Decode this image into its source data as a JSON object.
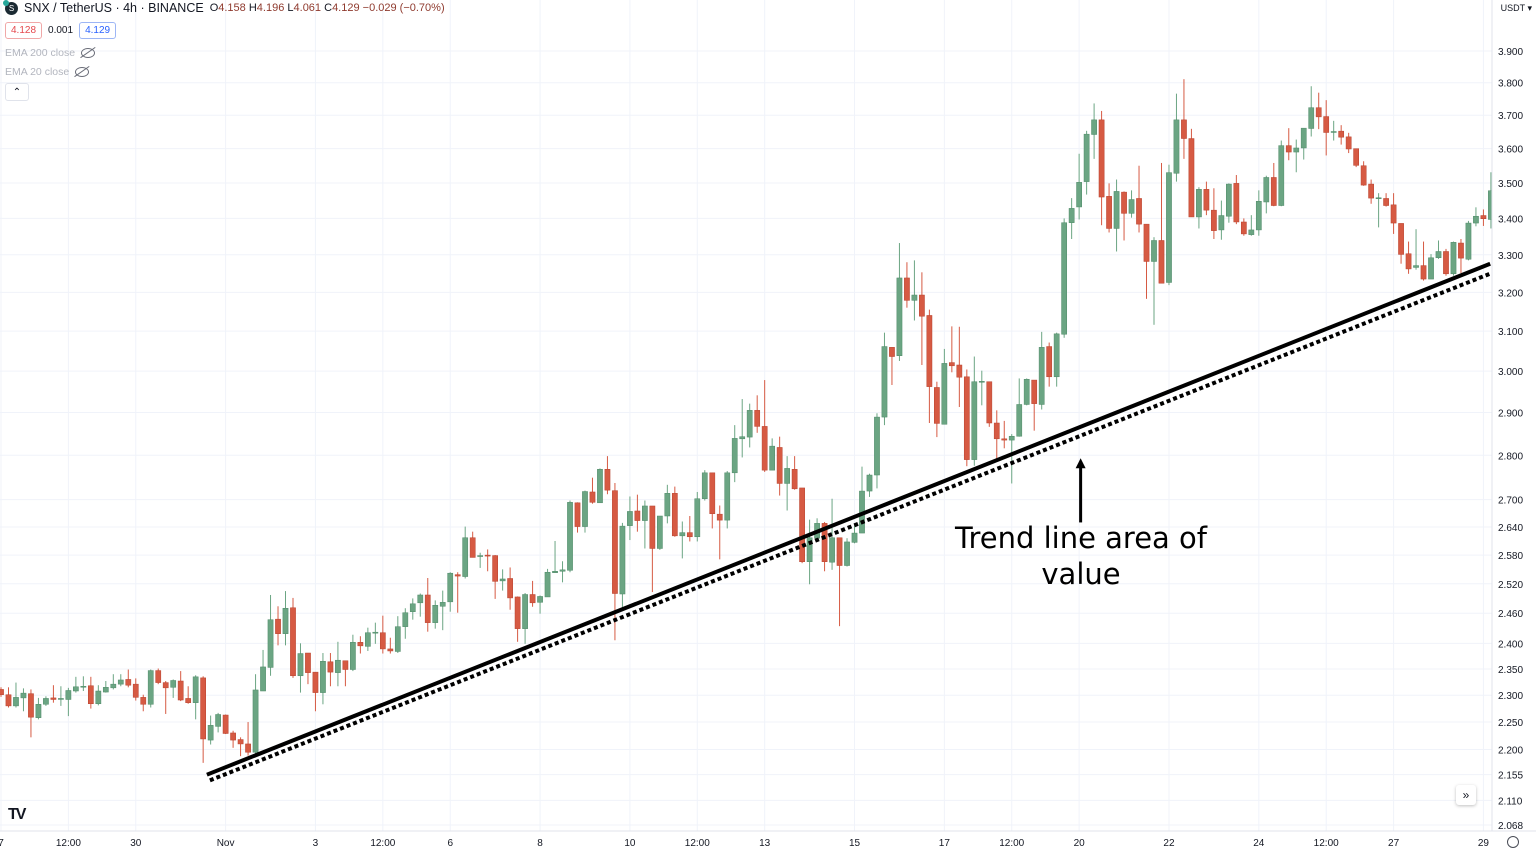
{
  "header": {
    "symbol_icon": "synthetix-coin-icon",
    "title": "SNX / TetherUS · 4h · BINANCE",
    "ohlc": {
      "o_label": "O",
      "o": "4.158",
      "h_label": "H",
      "h": "4.196",
      "l_label": "L",
      "l": "4.061",
      "c_label": "C",
      "c": "4.129",
      "change": "−0.029 (−0.70%)"
    },
    "bid": "4.128",
    "spread": "0.001",
    "ask": "4.129",
    "indicators": [
      {
        "label": "EMA 200 close",
        "icon": "eye-off-icon"
      },
      {
        "label": "EMA 20 close",
        "icon": "eye-off-icon"
      }
    ],
    "collapse_icon": "chevron-up-icon",
    "currency": "USDT ▾"
  },
  "footer": {
    "logo": "TV",
    "scroll_icon": "double-chevron-right-icon",
    "settings_icon": "gear-icon"
  },
  "colors": {
    "up": "#6ba583",
    "down": "#d65a43",
    "grid": "#f0f3fa",
    "trend": "#000000"
  },
  "chart_data": {
    "type": "candlestick",
    "y_scale": "log",
    "ylim": [
      2.06,
      3.92
    ],
    "grid": true,
    "y_ticks": [
      "3.900",
      "3.800",
      "3.700",
      "3.600",
      "3.500",
      "3.400",
      "3.300",
      "3.200",
      "3.100",
      "3.000",
      "2.900",
      "2.800",
      "2.700",
      "2.640",
      "2.580",
      "2.520",
      "2.460",
      "2.400",
      "2.350",
      "2.300",
      "2.250",
      "2.200",
      "2.155",
      "2.110",
      "2.068"
    ],
    "x_ticks": [
      {
        "label": "7",
        "bar": 0
      },
      {
        "label": "12:00",
        "bar": 9
      },
      {
        "label": "30",
        "bar": 18
      },
      {
        "label": "Nov",
        "bar": 30
      },
      {
        "label": "3",
        "bar": 42
      },
      {
        "label": "12:00",
        "bar": 51
      },
      {
        "label": "6",
        "bar": 60
      },
      {
        "label": "8",
        "bar": 72
      },
      {
        "label": "10",
        "bar": 84
      },
      {
        "label": "12:00",
        "bar": 93
      },
      {
        "label": "13",
        "bar": 102
      },
      {
        "label": "15",
        "bar": 114
      },
      {
        "label": "17",
        "bar": 126
      },
      {
        "label": "12:00",
        "bar": 135
      },
      {
        "label": "20",
        "bar": 144
      },
      {
        "label": "22",
        "bar": 156
      },
      {
        "label": "24",
        "bar": 168
      },
      {
        "label": "12:00",
        "bar": 177
      },
      {
        "label": "27",
        "bar": 186
      },
      {
        "label": "29",
        "bar": 198
      }
    ],
    "ohlc_fields": [
      "open",
      "high",
      "low",
      "close"
    ],
    "candles": [
      [
        2.311,
        2.315,
        2.297,
        2.301
      ],
      [
        2.301,
        2.315,
        2.277,
        2.28
      ],
      [
        2.28,
        2.324,
        2.277,
        2.296
      ],
      [
        2.295,
        2.313,
        2.27,
        2.304
      ],
      [
        2.303,
        2.311,
        2.222,
        2.259
      ],
      [
        2.258,
        2.295,
        2.255,
        2.283
      ],
      [
        2.283,
        2.298,
        2.28,
        2.294
      ],
      [
        2.295,
        2.319,
        2.286,
        2.292
      ],
      [
        2.294,
        2.317,
        2.28,
        2.294
      ],
      [
        2.292,
        2.314,
        2.261,
        2.309
      ],
      [
        2.308,
        2.335,
        2.305,
        2.316
      ],
      [
        2.317,
        2.336,
        2.308,
        2.317
      ],
      [
        2.318,
        2.335,
        2.275,
        2.284
      ],
      [
        2.284,
        2.319,
        2.281,
        2.308
      ],
      [
        2.306,
        2.327,
        2.305,
        2.315
      ],
      [
        2.314,
        2.34,
        2.311,
        2.321
      ],
      [
        2.321,
        2.34,
        2.317,
        2.329
      ],
      [
        2.33,
        2.349,
        2.315,
        2.319
      ],
      [
        2.321,
        2.332,
        2.29,
        2.296
      ],
      [
        2.296,
        2.301,
        2.27,
        2.283
      ],
      [
        2.283,
        2.349,
        2.277,
        2.347
      ],
      [
        2.347,
        2.351,
        2.321,
        2.324
      ],
      [
        2.324,
        2.327,
        2.265,
        2.314
      ],
      [
        2.315,
        2.33,
        2.295,
        2.328
      ],
      [
        2.327,
        2.346,
        2.289,
        2.291
      ],
      [
        2.294,
        2.317,
        2.284,
        2.286
      ],
      [
        2.286,
        2.338,
        2.255,
        2.335
      ],
      [
        2.333,
        2.336,
        2.176,
        2.219
      ],
      [
        2.217,
        2.262,
        2.209,
        2.244
      ],
      [
        2.242,
        2.267,
        2.231,
        2.264
      ],
      [
        2.263,
        2.264,
        2.228,
        2.229
      ],
      [
        2.23,
        2.234,
        2.203,
        2.217
      ],
      [
        2.218,
        2.222,
        2.188,
        2.21
      ],
      [
        2.21,
        2.25,
        2.189,
        2.195
      ],
      [
        2.195,
        2.34,
        2.192,
        2.31
      ],
      [
        2.308,
        2.387,
        2.308,
        2.354
      ],
      [
        2.353,
        2.497,
        2.337,
        2.447
      ],
      [
        2.448,
        2.474,
        2.396,
        2.419
      ],
      [
        2.419,
        2.505,
        2.396,
        2.47
      ],
      [
        2.471,
        2.491,
        2.333,
        2.337
      ],
      [
        2.337,
        2.4,
        2.305,
        2.38
      ],
      [
        2.381,
        2.381,
        2.321,
        2.343
      ],
      [
        2.344,
        2.344,
        2.27,
        2.305
      ],
      [
        2.305,
        2.381,
        2.283,
        2.365
      ],
      [
        2.364,
        2.381,
        2.317,
        2.344
      ],
      [
        2.343,
        2.403,
        2.317,
        2.367
      ],
      [
        2.366,
        2.366,
        2.317,
        2.349
      ],
      [
        2.349,
        2.417,
        2.346,
        2.402
      ],
      [
        2.402,
        2.414,
        2.38,
        2.395
      ],
      [
        2.394,
        2.431,
        2.385,
        2.421
      ],
      [
        2.421,
        2.441,
        2.399,
        2.422
      ],
      [
        2.421,
        2.455,
        2.38,
        2.389
      ],
      [
        2.389,
        2.411,
        2.38,
        2.385
      ],
      [
        2.384,
        2.454,
        2.381,
        2.433
      ],
      [
        2.433,
        2.47,
        2.409,
        2.461
      ],
      [
        2.463,
        2.49,
        2.447,
        2.479
      ],
      [
        2.481,
        2.5,
        2.453,
        2.497
      ],
      [
        2.497,
        2.532,
        2.423,
        2.441
      ],
      [
        2.441,
        2.486,
        2.429,
        2.476
      ],
      [
        2.474,
        2.506,
        2.426,
        2.482
      ],
      [
        2.483,
        2.544,
        2.463,
        2.542
      ],
      [
        2.539,
        2.544,
        2.461,
        2.536
      ],
      [
        2.535,
        2.641,
        2.531,
        2.617
      ],
      [
        2.617,
        2.63,
        2.575,
        2.575
      ],
      [
        2.579,
        2.585,
        2.553,
        2.579
      ],
      [
        2.58,
        2.592,
        2.546,
        2.578
      ],
      [
        2.579,
        2.58,
        2.489,
        2.525
      ],
      [
        2.526,
        2.55,
        2.506,
        2.53
      ],
      [
        2.531,
        2.554,
        2.467,
        2.491
      ],
      [
        2.493,
        2.494,
        2.403,
        2.429
      ],
      [
        2.429,
        2.501,
        2.399,
        2.498
      ],
      [
        2.498,
        2.526,
        2.473,
        2.481
      ],
      [
        2.482,
        2.496,
        2.459,
        2.494
      ],
      [
        2.493,
        2.551,
        2.493,
        2.544
      ],
      [
        2.543,
        2.61,
        2.543,
        2.546
      ],
      [
        2.546,
        2.567,
        2.523,
        2.549
      ],
      [
        2.548,
        2.698,
        2.544,
        2.694
      ],
      [
        2.693,
        2.694,
        2.628,
        2.641
      ],
      [
        2.641,
        2.72,
        2.628,
        2.718
      ],
      [
        2.717,
        2.749,
        2.691,
        2.694
      ],
      [
        2.693,
        2.77,
        2.693,
        2.768
      ],
      [
        2.768,
        2.798,
        2.712,
        2.721
      ],
      [
        2.72,
        2.737,
        2.406,
        2.5
      ],
      [
        2.499,
        2.649,
        2.466,
        2.642
      ],
      [
        2.643,
        2.707,
        2.612,
        2.674
      ],
      [
        2.675,
        2.711,
        2.63,
        2.654
      ],
      [
        2.654,
        2.698,
        2.594,
        2.686
      ],
      [
        2.686,
        2.686,
        2.503,
        2.594
      ],
      [
        2.594,
        2.664,
        2.591,
        2.664
      ],
      [
        2.664,
        2.733,
        2.648,
        2.714
      ],
      [
        2.714,
        2.729,
        2.619,
        2.621
      ],
      [
        2.621,
        2.652,
        2.573,
        2.628
      ],
      [
        2.628,
        2.664,
        2.609,
        2.619
      ],
      [
        2.619,
        2.717,
        2.609,
        2.702
      ],
      [
        2.702,
        2.766,
        2.698,
        2.76
      ],
      [
        2.76,
        2.76,
        2.637,
        2.669
      ],
      [
        2.668,
        2.687,
        2.571,
        2.655
      ],
      [
        2.655,
        2.764,
        2.637,
        2.76
      ],
      [
        2.76,
        2.87,
        2.739,
        2.839
      ],
      [
        2.838,
        2.932,
        2.795,
        2.843
      ],
      [
        2.842,
        2.921,
        2.818,
        2.905
      ],
      [
        2.905,
        2.941,
        2.852,
        2.867
      ],
      [
        2.867,
        2.978,
        2.762,
        2.766
      ],
      [
        2.766,
        2.839,
        2.766,
        2.821
      ],
      [
        2.818,
        2.843,
        2.709,
        2.736
      ],
      [
        2.736,
        2.798,
        2.676,
        2.77
      ],
      [
        2.768,
        2.798,
        2.722,
        2.724
      ],
      [
        2.726,
        2.726,
        2.563,
        2.566
      ],
      [
        2.566,
        2.656,
        2.519,
        2.617
      ],
      [
        2.616,
        2.659,
        2.614,
        2.648
      ],
      [
        2.648,
        2.651,
        2.546,
        2.566
      ],
      [
        2.565,
        2.702,
        2.549,
        2.617
      ],
      [
        2.617,
        2.617,
        2.434,
        2.558
      ],
      [
        2.558,
        2.616,
        2.556,
        2.608
      ],
      [
        2.607,
        2.648,
        2.605,
        2.627
      ],
      [
        2.627,
        2.774,
        2.627,
        2.719
      ],
      [
        2.719,
        2.758,
        2.706,
        2.755
      ],
      [
        2.755,
        2.898,
        2.725,
        2.889
      ],
      [
        2.889,
        3.096,
        2.87,
        3.061
      ],
      [
        3.059,
        3.059,
        2.966,
        3.036
      ],
      [
        3.038,
        3.332,
        3.025,
        3.238
      ],
      [
        3.238,
        3.28,
        3.16,
        3.179
      ],
      [
        3.179,
        3.285,
        3.127,
        3.193
      ],
      [
        3.193,
        3.253,
        3.015,
        3.138
      ],
      [
        3.14,
        3.155,
        2.875,
        2.962
      ],
      [
        2.96,
        2.974,
        2.842,
        2.874
      ],
      [
        2.872,
        3.055,
        2.872,
        3.019
      ],
      [
        3.021,
        3.112,
        2.997,
        3.013
      ],
      [
        3.015,
        3.111,
        2.913,
        2.985
      ],
      [
        2.986,
        3.004,
        2.775,
        2.79
      ],
      [
        2.79,
        3.036,
        2.776,
        2.974
      ],
      [
        2.974,
        3.001,
        2.917,
        2.975
      ],
      [
        2.974,
        2.974,
        2.866,
        2.875
      ],
      [
        2.875,
        2.905,
        2.789,
        2.838
      ],
      [
        2.838,
        2.88,
        2.816,
        2.835
      ],
      [
        2.835,
        2.849,
        2.736,
        2.844
      ],
      [
        2.844,
        2.982,
        2.843,
        2.919
      ],
      [
        2.919,
        2.982,
        2.917,
        2.98
      ],
      [
        2.978,
        2.978,
        2.857,
        2.921
      ],
      [
        2.919,
        3.098,
        2.907,
        3.059
      ],
      [
        3.061,
        3.071,
        2.962,
        2.986
      ],
      [
        2.986,
        3.096,
        2.962,
        3.093
      ],
      [
        3.092,
        3.4,
        3.083,
        3.388
      ],
      [
        3.388,
        3.457,
        3.343,
        3.428
      ],
      [
        3.432,
        3.585,
        3.397,
        3.502
      ],
      [
        3.504,
        3.653,
        3.467,
        3.643
      ],
      [
        3.642,
        3.736,
        3.57,
        3.686
      ],
      [
        3.686,
        3.713,
        3.381,
        3.46
      ],
      [
        3.462,
        3.499,
        3.361,
        3.372
      ],
      [
        3.372,
        3.51,
        3.309,
        3.476
      ],
      [
        3.474,
        3.476,
        3.339,
        3.414
      ],
      [
        3.414,
        3.479,
        3.402,
        3.453
      ],
      [
        3.456,
        3.55,
        3.361,
        3.384
      ],
      [
        3.384,
        3.384,
        3.183,
        3.282
      ],
      [
        3.282,
        3.348,
        3.116,
        3.339
      ],
      [
        3.339,
        3.558,
        3.224,
        3.224
      ],
      [
        3.226,
        3.553,
        3.219,
        3.53
      ],
      [
        3.528,
        3.766,
        3.504,
        3.686
      ],
      [
        3.686,
        3.811,
        3.57,
        3.63
      ],
      [
        3.63,
        3.659,
        3.404,
        3.404
      ],
      [
        3.404,
        3.488,
        3.372,
        3.482
      ],
      [
        3.482,
        3.504,
        3.409,
        3.423
      ],
      [
        3.423,
        3.485,
        3.343,
        3.366
      ],
      [
        3.368,
        3.45,
        3.341,
        3.408
      ],
      [
        3.406,
        3.499,
        3.388,
        3.497
      ],
      [
        3.499,
        3.523,
        3.384,
        3.39
      ],
      [
        3.39,
        3.4,
        3.352,
        3.357
      ],
      [
        3.355,
        3.409,
        3.352,
        3.368
      ],
      [
        3.368,
        3.479,
        3.352,
        3.448
      ],
      [
        3.446,
        3.521,
        3.414,
        3.516
      ],
      [
        3.516,
        3.558,
        3.434,
        3.436
      ],
      [
        3.436,
        3.624,
        3.434,
        3.609
      ],
      [
        3.609,
        3.661,
        3.566,
        3.59
      ],
      [
        3.59,
        3.627,
        3.531,
        3.602
      ],
      [
        3.602,
        3.661,
        3.568,
        3.661
      ],
      [
        3.66,
        3.789,
        3.636,
        3.723
      ],
      [
        3.723,
        3.769,
        3.658,
        3.695
      ],
      [
        3.696,
        3.746,
        3.58,
        3.648
      ],
      [
        3.65,
        3.683,
        3.624,
        3.651
      ],
      [
        3.652,
        3.67,
        3.612,
        3.634
      ],
      [
        3.635,
        3.647,
        3.587,
        3.599
      ],
      [
        3.6,
        3.6,
        3.546,
        3.551
      ],
      [
        3.55,
        3.563,
        3.492,
        3.494
      ],
      [
        3.497,
        3.51,
        3.441,
        3.457
      ],
      [
        3.457,
        3.471,
        3.375,
        3.458
      ],
      [
        3.456,
        3.471,
        3.433,
        3.436
      ],
      [
        3.438,
        3.471,
        3.357,
        3.387
      ],
      [
        3.386,
        3.386,
        3.276,
        3.301
      ],
      [
        3.303,
        3.336,
        3.249,
        3.262
      ],
      [
        3.266,
        3.37,
        3.26,
        3.271
      ],
      [
        3.271,
        3.336,
        3.231,
        3.235
      ],
      [
        3.235,
        3.302,
        3.235,
        3.292
      ],
      [
        3.292,
        3.339,
        3.289,
        3.309
      ],
      [
        3.309,
        3.316,
        3.244,
        3.249
      ],
      [
        3.249,
        3.336,
        3.244,
        3.334
      ],
      [
        3.332,
        3.343,
        3.251,
        3.291
      ],
      [
        3.288,
        3.393,
        3.285,
        3.387
      ],
      [
        3.387,
        3.431,
        3.378,
        3.406
      ],
      [
        3.408,
        3.425,
        3.379,
        3.399
      ],
      [
        3.397,
        3.531,
        3.372,
        3.478
      ]
    ],
    "trend_lines": [
      {
        "style": "solid",
        "from": {
          "bar": 27.5,
          "price": 2.155
        },
        "to": {
          "bar": 198.9,
          "price": 3.276
        }
      },
      {
        "style": "dotted",
        "from": {
          "bar": 27.9,
          "price": 2.145
        },
        "to": {
          "bar": 199.1,
          "price": 3.251
        }
      }
    ],
    "annotation": {
      "lines": [
        "Trend line area of",
        "value"
      ],
      "arrow": {
        "bar": 144.2,
        "from_price": 2.65,
        "to_price": 2.793
      }
    }
  }
}
